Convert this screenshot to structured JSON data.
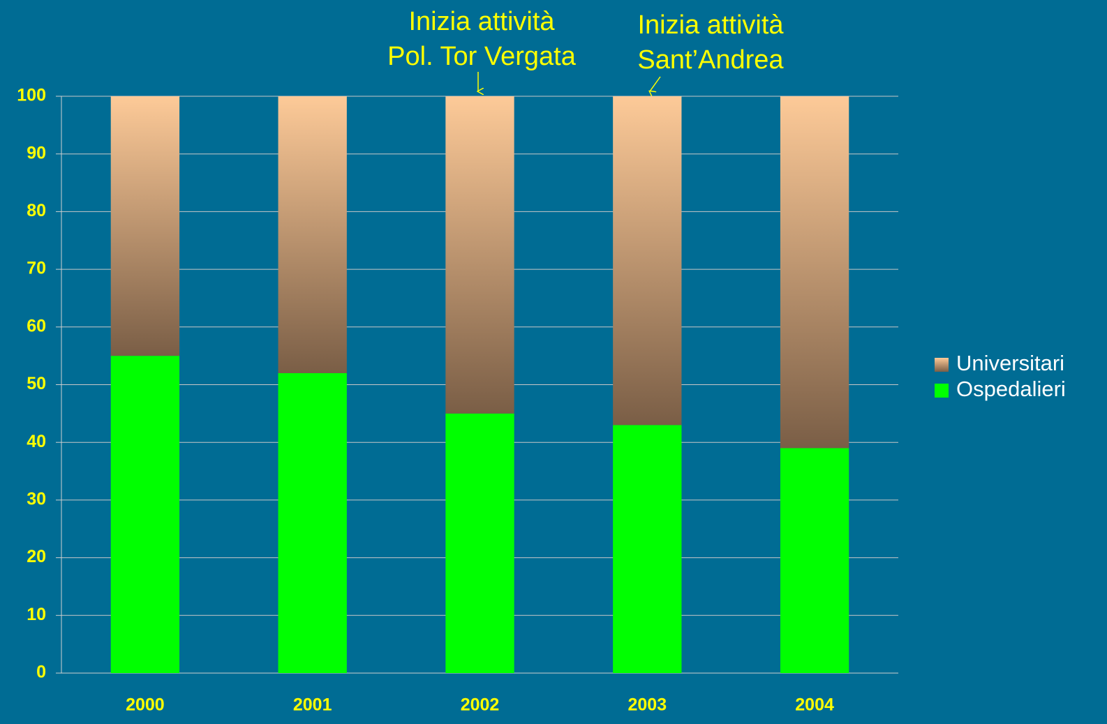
{
  "chart_data": {
    "type": "stacked_bar",
    "categories": [
      "2000",
      "2001",
      "2002",
      "2003",
      "2004"
    ],
    "series": [
      {
        "name": "Ospedalieri",
        "color": "#00ff00",
        "values": [
          55,
          52,
          45,
          43,
          39
        ]
      },
      {
        "name": "Universitari",
        "color": "#fdca98",
        "gradient_to": "#7a5e46",
        "values": [
          45,
          48,
          55,
          57,
          61
        ]
      }
    ],
    "ylim": [
      0,
      100
    ],
    "yticks": [
      0,
      10,
      20,
      30,
      40,
      50,
      60,
      70,
      80,
      90,
      100
    ],
    "grid": true,
    "legend": "right",
    "annotations": [
      {
        "lines": [
          "Inizia attività",
          "Pol. Tor Vergata"
        ]
      },
      {
        "lines": [
          "Inizia attività",
          "Sant’Andrea"
        ]
      }
    ]
  }
}
